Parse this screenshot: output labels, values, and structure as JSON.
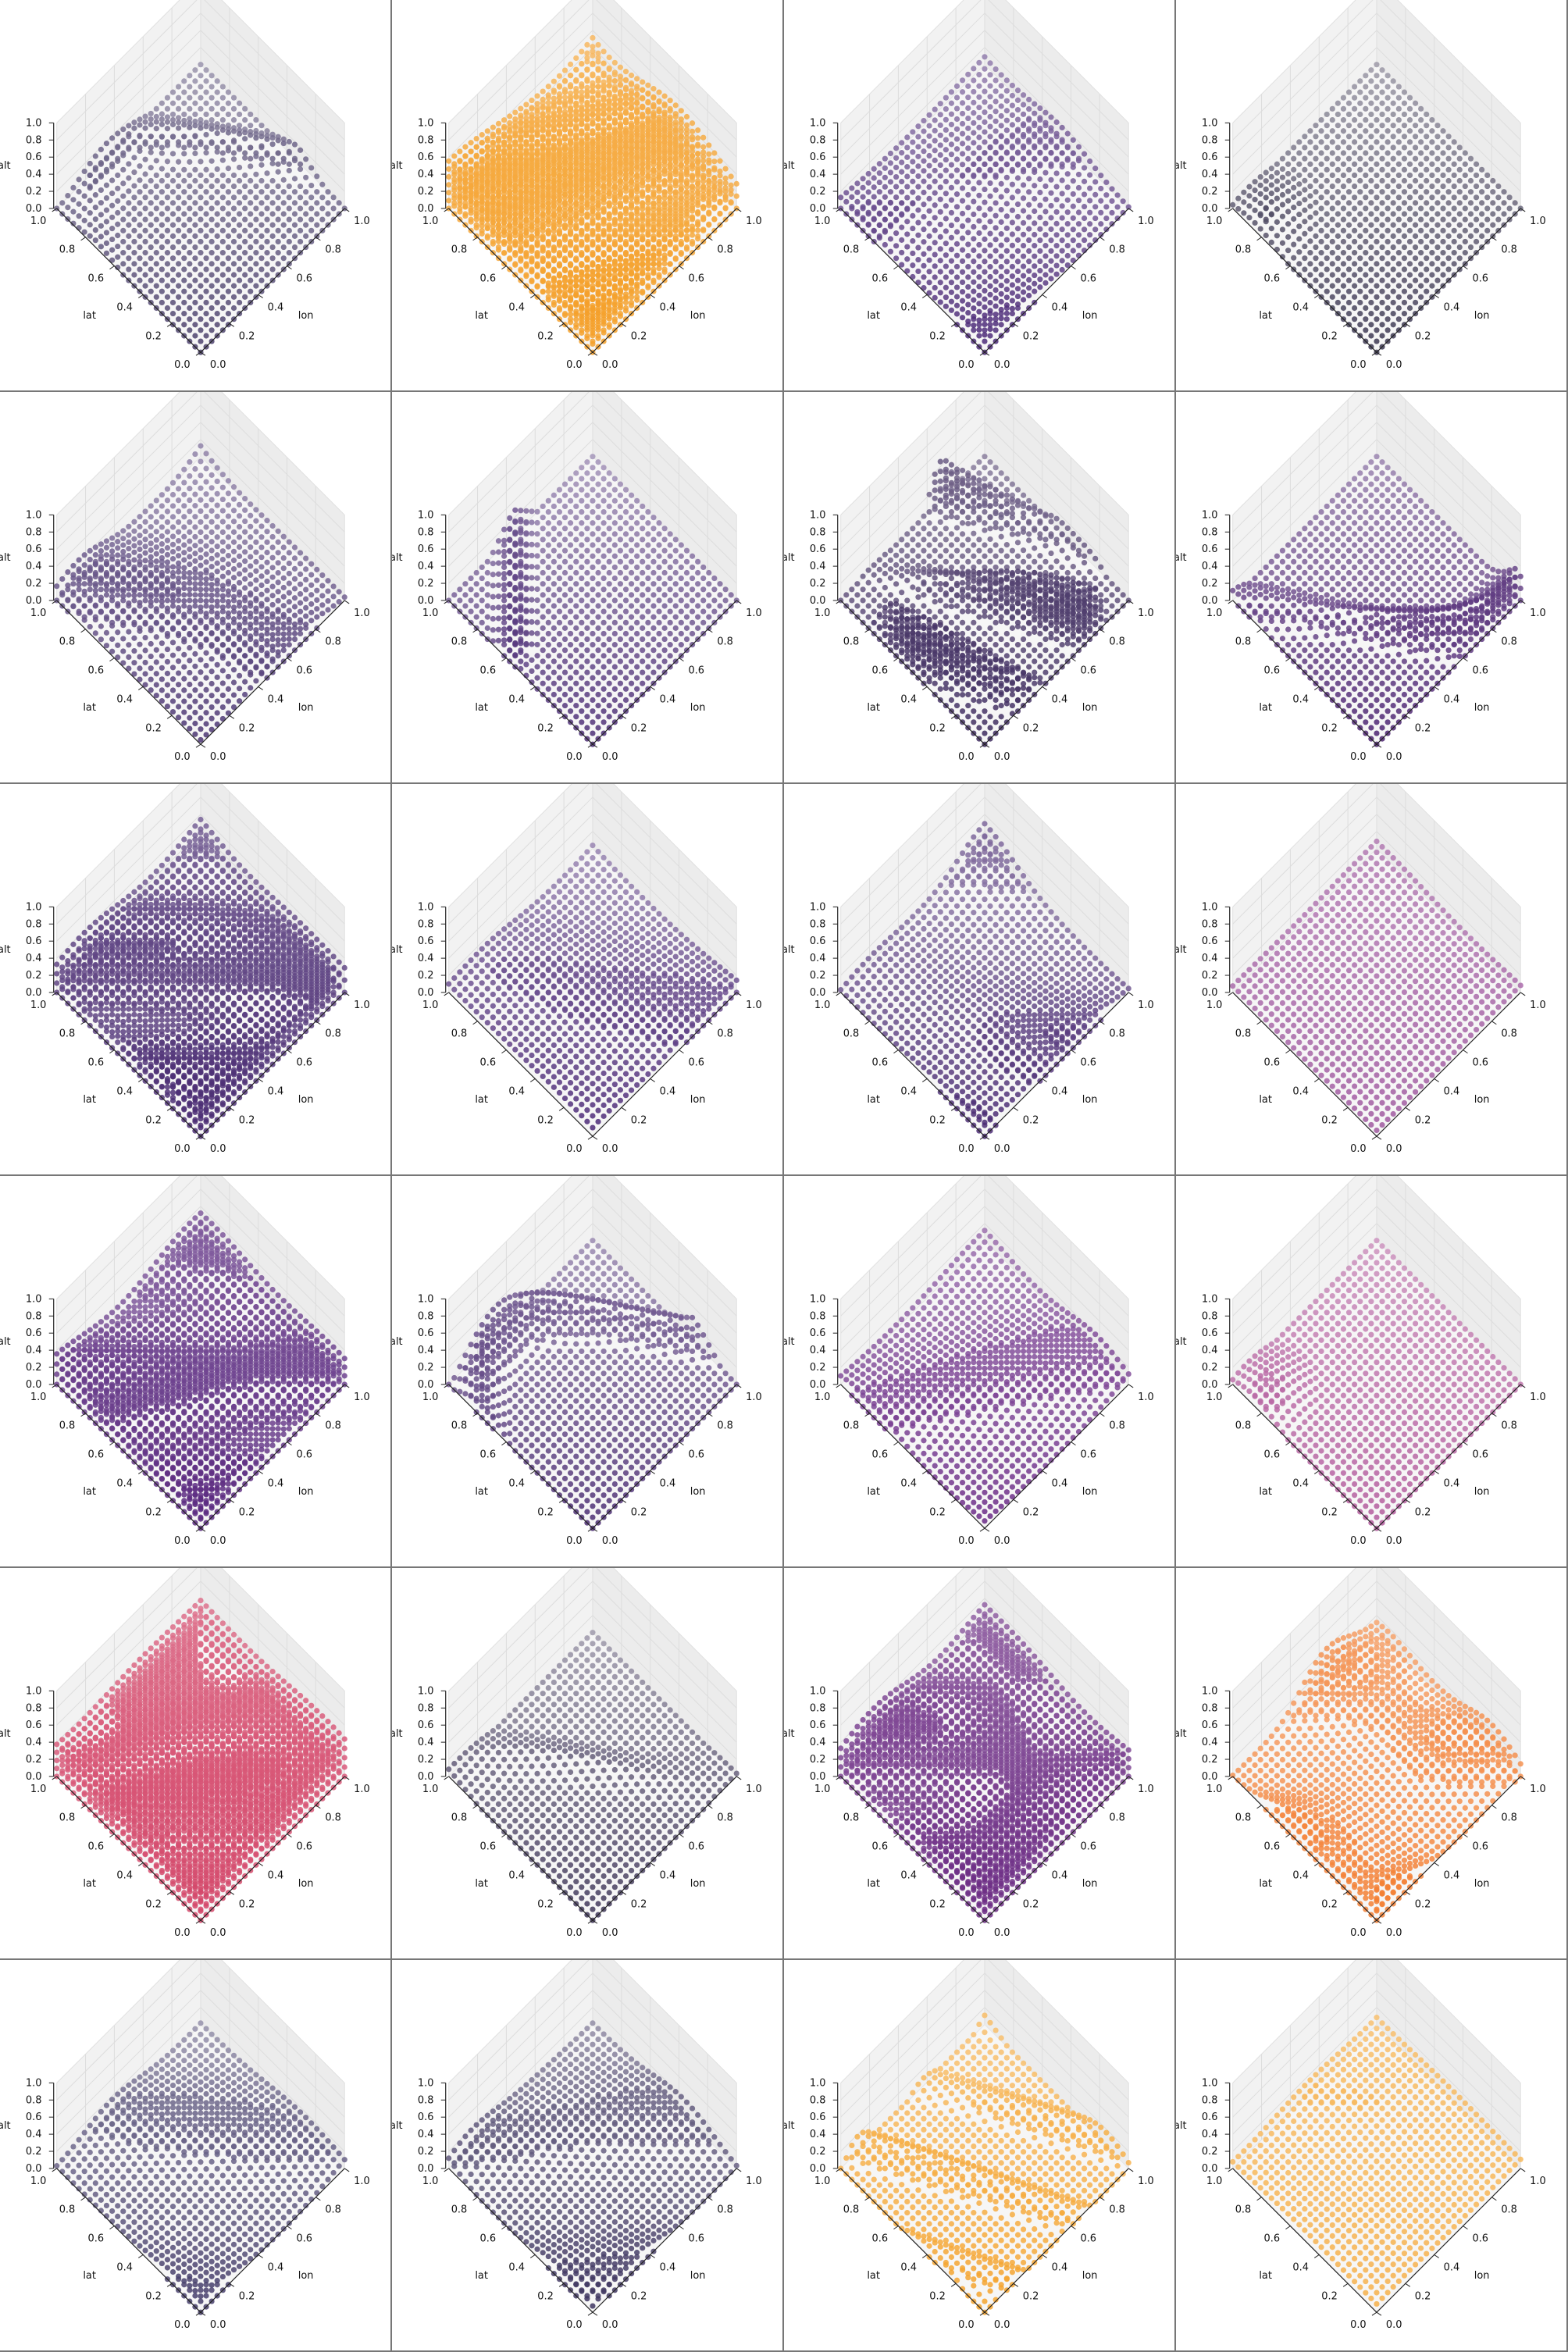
{
  "figure": {
    "rows": 6,
    "cols": 4
  },
  "axes": {
    "xlabel": "lon",
    "ylabel": "lat",
    "zlabel": "alt",
    "xticks": [
      "0.0",
      "0.2",
      "0.4",
      "0.6",
      "0.8",
      "1.0"
    ],
    "yticks": [
      "0.0",
      "0.2",
      "0.4",
      "0.6",
      "0.8",
      "1.0"
    ],
    "zticks": [
      "0.0",
      "0.2",
      "0.4",
      "0.6",
      "0.8",
      "1.0"
    ],
    "xlim": [
      0,
      1
    ],
    "ylim": [
      0,
      1
    ],
    "zlim": [
      0,
      1
    ],
    "grid": true
  },
  "chart_data": [
    {
      "type": "scatter",
      "panel": 1,
      "color": "#4a3f6b",
      "fade": 0.45,
      "max_alt": 0.25,
      "shape": "ribbon"
    },
    {
      "type": "scatter",
      "panel": 2,
      "color": "#f5a02a",
      "fade": 0.35,
      "max_alt": 0.6,
      "shape": "fill"
    },
    {
      "type": "scatter",
      "panel": 3,
      "color": "#4c2a78",
      "fade": 0.45,
      "max_alt": 0.4,
      "shape": "patches"
    },
    {
      "type": "scatter",
      "panel": 4,
      "color": "#3a3550",
      "fade": 0.5,
      "max_alt": 0.15,
      "shape": "corner"
    },
    {
      "type": "scatter",
      "panel": 5,
      "color": "#4b3572",
      "fade": 0.45,
      "max_alt": 0.4,
      "shape": "patches"
    },
    {
      "type": "scatter",
      "panel": 6,
      "color": "#4b2c75",
      "fade": 0.5,
      "max_alt": 0.3,
      "shape": "edge"
    },
    {
      "type": "scatter",
      "panel": 7,
      "color": "#3d2a5e",
      "fade": 0.4,
      "max_alt": 0.7,
      "shape": "bands"
    },
    {
      "type": "scatter",
      "panel": 8,
      "color": "#4a2170",
      "fade": 0.45,
      "max_alt": 0.55,
      "shape": "ribbon"
    },
    {
      "type": "scatter",
      "panel": 9,
      "color": "#4a2c73",
      "fade": 0.4,
      "max_alt": 0.45,
      "shape": "fill"
    },
    {
      "type": "scatter",
      "panel": 10,
      "color": "#4d2b78",
      "fade": 0.45,
      "max_alt": 0.35,
      "shape": "patches"
    },
    {
      "type": "scatter",
      "panel": 11,
      "color": "#4b2c74",
      "fade": 0.45,
      "max_alt": 0.4,
      "shape": "patches"
    },
    {
      "type": "scatter",
      "panel": 12,
      "color": "#a05aa0",
      "fade": 0.35,
      "max_alt": 0.1,
      "shape": "fill"
    },
    {
      "type": "scatter",
      "panel": 13,
      "color": "#5b2a80",
      "fade": 0.4,
      "max_alt": 0.4,
      "shape": "fill"
    },
    {
      "type": "scatter",
      "panel": 14,
      "color": "#4a2c72",
      "fade": 0.45,
      "max_alt": 0.45,
      "shape": "ribbon"
    },
    {
      "type": "scatter",
      "panel": 15,
      "color": "#6a2a86",
      "fade": 0.4,
      "max_alt": 0.35,
      "shape": "patches"
    },
    {
      "type": "scatter",
      "panel": 16,
      "color": "#b25a9c",
      "fade": 0.35,
      "max_alt": 0.2,
      "shape": "corner"
    },
    {
      "type": "scatter",
      "panel": 17,
      "color": "#d4476a",
      "fade": 0.35,
      "max_alt": 0.6,
      "shape": "fill"
    },
    {
      "type": "scatter",
      "panel": 18,
      "color": "#3e3558",
      "fade": 0.5,
      "max_alt": 0.2,
      "shape": "ribbon"
    },
    {
      "type": "scatter",
      "panel": 19,
      "color": "#6c2c84",
      "fade": 0.4,
      "max_alt": 0.45,
      "shape": "fill"
    },
    {
      "type": "scatter",
      "panel": 20,
      "color": "#f37f33",
      "fade": 0.35,
      "max_alt": 0.5,
      "shape": "patches"
    },
    {
      "type": "scatter",
      "panel": 21,
      "color": "#453d6a",
      "fade": 0.45,
      "max_alt": 0.3,
      "shape": "patches"
    },
    {
      "type": "scatter",
      "panel": 22,
      "color": "#3e3560",
      "fade": 0.45,
      "max_alt": 0.3,
      "shape": "patches"
    },
    {
      "type": "scatter",
      "panel": 23,
      "color": "#f5a32c",
      "fade": 0.35,
      "max_alt": 0.3,
      "shape": "bands"
    },
    {
      "type": "scatter",
      "panel": 24,
      "color": "#f6b04a",
      "fade": 0.3,
      "max_alt": 0.15,
      "shape": "fill"
    }
  ]
}
